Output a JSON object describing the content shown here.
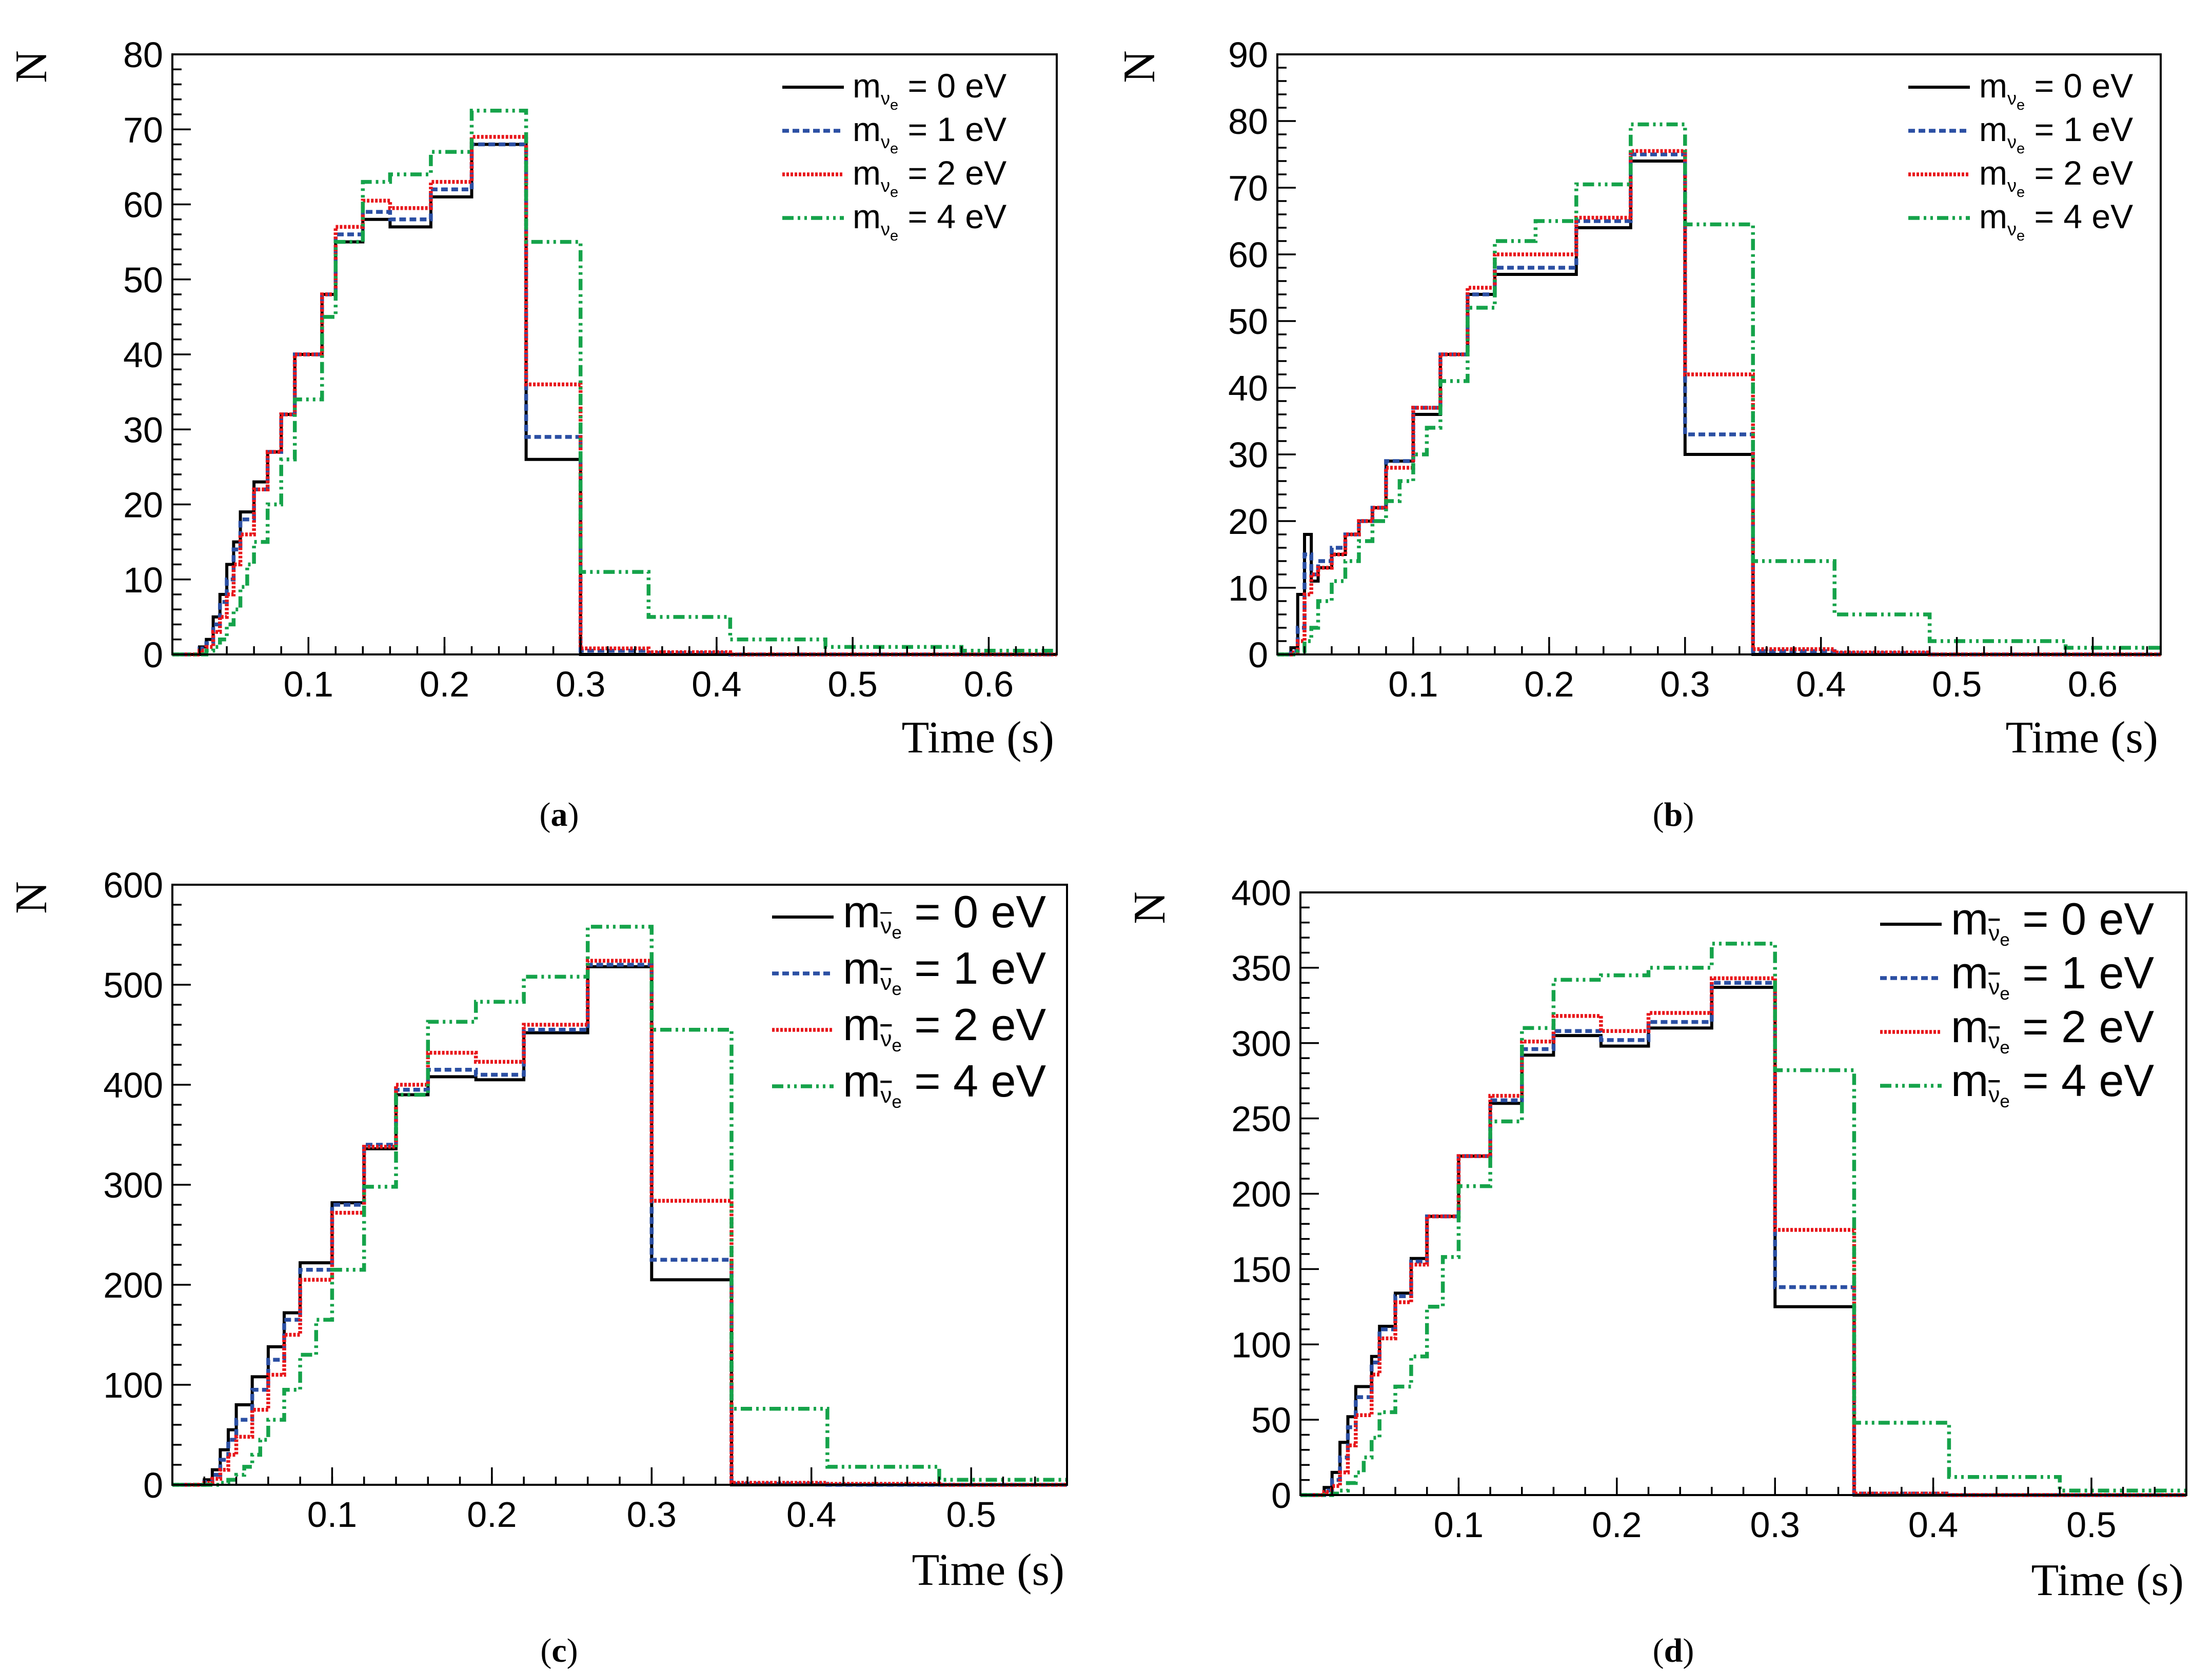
{
  "figure": {
    "colors": {
      "m0": "#000000",
      "m1": "#2b4fa3",
      "m2": "#e8161b",
      "m4": "#15a34a"
    }
  },
  "chart_data": [
    {
      "type": "step",
      "panel_label": "a",
      "xlabel": "Time (s)",
      "ylabel": "N",
      "xlim": [
        0,
        0.65
      ],
      "ylim": [
        0,
        80
      ],
      "x_ticks": [
        0.1,
        0.2,
        0.3,
        0.4,
        0.5,
        0.6
      ],
      "x_tick_labels": [
        "0.1",
        "0.2",
        "0.3",
        "0.4",
        "0.5",
        "0.6"
      ],
      "y_ticks": [
        0,
        10,
        20,
        30,
        40,
        50,
        60,
        70,
        80
      ],
      "y_tick_labels": [
        "0",
        "10",
        "20",
        "30",
        "40",
        "50",
        "60",
        "70",
        "80"
      ],
      "legend_placement": "top-right",
      "legend_particle": "nu",
      "bin_edges": [
        0,
        0.01,
        0.02,
        0.025,
        0.03,
        0.035,
        0.04,
        0.045,
        0.05,
        0.055,
        0.06,
        0.07,
        0.08,
        0.09,
        0.1,
        0.11,
        0.12,
        0.14,
        0.16,
        0.19,
        0.22,
        0.26,
        0.3,
        0.35,
        0.41,
        0.48,
        0.58,
        0.65
      ],
      "series": [
        {
          "key": "m0",
          "legend_label": "= 0 eV",
          "dash": "",
          "values": [
            0,
            0,
            1,
            2,
            5,
            8,
            12,
            15,
            19,
            19,
            23,
            27,
            32,
            40,
            40,
            48,
            55,
            58,
            57,
            61,
            68,
            26,
            0,
            0,
            0,
            0,
            0
          ]
        },
        {
          "key": "m1",
          "legend_label": "= 1 eV",
          "dash": "13 7",
          "values": [
            0,
            0,
            0.8,
            1.5,
            4,
            7,
            10,
            14,
            18,
            18,
            22,
            27,
            32,
            40,
            40,
            48,
            56,
            59,
            58,
            62,
            68,
            29,
            0.5,
            0.2,
            0,
            0,
            0
          ]
        },
        {
          "key": "m2",
          "legend_label": "= 2 eV",
          "dash": "5 3",
          "values": [
            0,
            0,
            0.5,
            1,
            3,
            5,
            8,
            12,
            16,
            16,
            22,
            27,
            32,
            40,
            40,
            48,
            57,
            60.5,
            59.5,
            63,
            69,
            36,
            0.8,
            0.3,
            0,
            0,
            0
          ]
        },
        {
          "key": "m4",
          "legend_label": "= 4 eV",
          "dash": "22 8 5 8 5 8",
          "values": [
            0,
            0,
            0,
            0.5,
            1,
            2,
            4,
            6,
            9,
            12,
            15,
            20,
            26,
            34,
            34,
            45,
            55,
            63,
            64,
            67,
            72.5,
            55,
            11,
            5,
            2,
            1,
            0.5
          ]
        }
      ]
    },
    {
      "type": "step",
      "panel_label": "b",
      "xlabel": "Time (s)",
      "ylabel": "N",
      "xlim": [
        0,
        0.65
      ],
      "ylim": [
        0,
        90
      ],
      "x_ticks": [
        0.1,
        0.2,
        0.3,
        0.4,
        0.5,
        0.6
      ],
      "x_tick_labels": [
        "0.1",
        "0.2",
        "0.3",
        "0.4",
        "0.5",
        "0.6"
      ],
      "y_ticks": [
        0,
        10,
        20,
        30,
        40,
        50,
        60,
        70,
        80,
        90
      ],
      "y_tick_labels": [
        "0",
        "10",
        "20",
        "30",
        "40",
        "50",
        "60",
        "70",
        "80",
        "90"
      ],
      "legend_placement": "top-right",
      "legend_particle": "nu",
      "bin_edges": [
        0,
        0.01,
        0.015,
        0.02,
        0.025,
        0.03,
        0.04,
        0.05,
        0.06,
        0.07,
        0.08,
        0.09,
        0.1,
        0.11,
        0.12,
        0.14,
        0.16,
        0.19,
        0.22,
        0.26,
        0.3,
        0.35,
        0.41,
        0.48,
        0.58,
        0.65
      ],
      "series": [
        {
          "key": "m0",
          "legend_label": "= 0 eV",
          "dash": "",
          "values": [
            0,
            1,
            9,
            18,
            11,
            13,
            15,
            18,
            20,
            22,
            29,
            29,
            36,
            36,
            45,
            54,
            57,
            57,
            64,
            74,
            30,
            0,
            0,
            0,
            0
          ]
        },
        {
          "key": "m1",
          "legend_label": "= 1 eV",
          "dash": "13 7",
          "values": [
            0,
            0.5,
            4,
            15,
            12,
            14,
            16,
            18,
            20,
            22,
            29,
            29,
            37,
            37,
            45,
            54,
            58,
            58,
            65,
            75,
            33,
            0.5,
            0.2,
            0,
            0
          ]
        },
        {
          "key": "m2",
          "legend_label": "= 2 eV",
          "dash": "5 3",
          "values": [
            0,
            0.3,
            2,
            9,
            12,
            13,
            15,
            18,
            20,
            22,
            28,
            28,
            37,
            37,
            45,
            55,
            60,
            60,
            65.5,
            75.5,
            42,
            0.8,
            0.3,
            0,
            0
          ]
        },
        {
          "key": "m4",
          "legend_label": "= 4 eV",
          "dash": "22 8 5 8 5 8",
          "values": [
            0,
            0,
            0.5,
            2,
            4,
            8,
            11,
            14,
            17,
            20,
            23,
            26,
            30,
            34,
            41,
            52,
            62,
            65,
            70.5,
            79.5,
            64.5,
            14,
            6,
            2,
            1
          ]
        }
      ]
    },
    {
      "type": "step",
      "panel_label": "c",
      "xlabel": "Time (s)",
      "ylabel": "N",
      "xlim": [
        0,
        0.56
      ],
      "ylim": [
        0,
        600
      ],
      "x_ticks": [
        0.1,
        0.2,
        0.3,
        0.4,
        0.5
      ],
      "x_tick_labels": [
        "0.1",
        "0.2",
        "0.3",
        "0.4",
        "0.5"
      ],
      "y_ticks": [
        0,
        100,
        200,
        300,
        400,
        500,
        600
      ],
      "y_tick_labels": [
        "0",
        "100",
        "200",
        "300",
        "400",
        "500",
        "600"
      ],
      "legend_placement": "top-right",
      "legend_particle": "nubar",
      "bin_edges": [
        0,
        0.02,
        0.025,
        0.03,
        0.035,
        0.04,
        0.045,
        0.05,
        0.055,
        0.06,
        0.07,
        0.08,
        0.09,
        0.1,
        0.11,
        0.12,
        0.14,
        0.16,
        0.19,
        0.22,
        0.26,
        0.3,
        0.35,
        0.41,
        0.48,
        0.56
      ],
      "series": [
        {
          "key": "m0",
          "legend_label": "= 0 eV",
          "dash": "",
          "values": [
            0,
            5,
            15,
            35,
            55,
            80,
            80,
            108,
            108,
            138,
            172,
            222,
            222,
            282,
            282,
            336,
            390,
            408,
            405,
            452,
            518,
            205,
            0,
            0,
            0
          ]
        },
        {
          "key": "m1",
          "legend_label": "= 1 eV",
          "dash": "13 7",
          "values": [
            0,
            3,
            10,
            25,
            45,
            65,
            65,
            95,
            95,
            125,
            165,
            215,
            215,
            280,
            280,
            340,
            395,
            415,
            410,
            455,
            520,
            225,
            1,
            0,
            0
          ]
        },
        {
          "key": "m2",
          "legend_label": "= 2 eV",
          "dash": "5 3",
          "values": [
            0,
            2,
            6,
            15,
            30,
            48,
            48,
            75,
            75,
            110,
            150,
            205,
            205,
            272,
            272,
            338,
            400,
            432,
            423,
            460,
            524,
            284,
            2,
            1,
            0
          ]
        },
        {
          "key": "m4",
          "legend_label": "= 4 eV",
          "dash": "22 8 5 8 5 8",
          "values": [
            0,
            0,
            0,
            2,
            5,
            10,
            18,
            30,
            45,
            65,
            95,
            130,
            165,
            215,
            215,
            298,
            390,
            463,
            483,
            508,
            558,
            455,
            76,
            18,
            5
          ]
        }
      ]
    },
    {
      "type": "step",
      "panel_label": "d",
      "xlabel": "Time (s)",
      "ylabel": "N",
      "xlim": [
        0,
        0.56
      ],
      "ylim": [
        0,
        400
      ],
      "x_ticks": [
        0.1,
        0.2,
        0.3,
        0.4,
        0.5
      ],
      "x_tick_labels": [
        "0.1",
        "0.2",
        "0.3",
        "0.4",
        "0.5"
      ],
      "y_ticks": [
        0,
        50,
        100,
        150,
        200,
        250,
        300,
        350,
        400
      ],
      "y_tick_labels": [
        "0",
        "50",
        "100",
        "150",
        "200",
        "250",
        "300",
        "350",
        "400"
      ],
      "legend_placement": "top-right",
      "legend_particle": "nubar",
      "bin_edges": [
        0,
        0.015,
        0.02,
        0.025,
        0.03,
        0.035,
        0.04,
        0.045,
        0.05,
        0.06,
        0.07,
        0.08,
        0.09,
        0.1,
        0.11,
        0.12,
        0.14,
        0.16,
        0.19,
        0.22,
        0.26,
        0.3,
        0.35,
        0.41,
        0.48,
        0.56
      ],
      "series": [
        {
          "key": "m0",
          "legend_label": "= 0 eV",
          "dash": "",
          "values": [
            0,
            5,
            15,
            35,
            52,
            72,
            72,
            92,
            112,
            134,
            157,
            185,
            185,
            225,
            225,
            260,
            292,
            305,
            298,
            310,
            337,
            125,
            0,
            0,
            0
          ]
        },
        {
          "key": "m1",
          "legend_label": "= 1 eV",
          "dash": "13 7",
          "values": [
            0,
            3,
            10,
            25,
            45,
            65,
            65,
            88,
            110,
            132,
            155,
            185,
            185,
            225,
            225,
            262,
            296,
            308,
            302,
            314,
            340,
            138,
            1,
            0,
            0
          ]
        },
        {
          "key": "m2",
          "legend_label": "= 2 eV",
          "dash": "5 3",
          "values": [
            0,
            2,
            6,
            15,
            33,
            53,
            53,
            80,
            104,
            128,
            153,
            185,
            185,
            225,
            225,
            265,
            301,
            318,
            308,
            320,
            343,
            176,
            1,
            0,
            0
          ]
        },
        {
          "key": "m4",
          "legend_label": "= 4 eV",
          "dash": "22 8 5 8 5 8",
          "values": [
            0,
            0,
            1,
            3,
            8,
            15,
            25,
            38,
            55,
            72,
            92,
            125,
            158,
            205,
            205,
            248,
            310,
            342,
            345,
            350,
            366,
            282,
            48,
            12,
            3
          ]
        }
      ]
    }
  ]
}
